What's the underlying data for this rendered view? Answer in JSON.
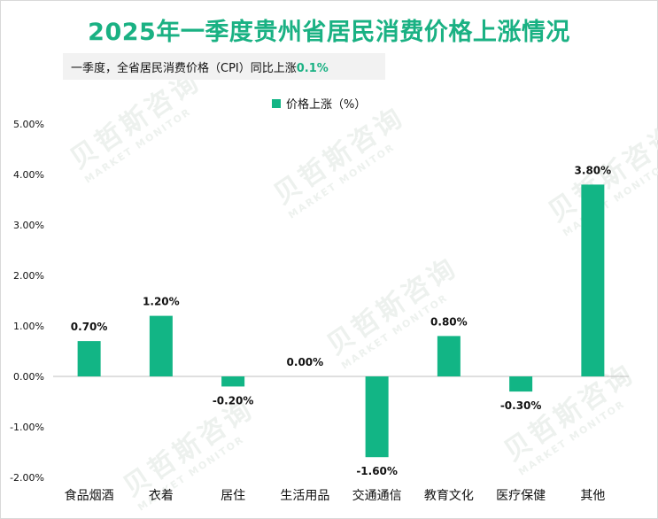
{
  "title": "2025年一季度贵州省居民消费价格上涨情况",
  "subtitle": {
    "prefix": "一季度，全省居民消费价格（CPI）同比上涨",
    "highlight": "0.1%"
  },
  "watermark": {
    "brand": "贝哲斯咨询",
    "tagline": "MARKET MONITOR"
  },
  "colors": {
    "bar": "#12b585",
    "title": "#1ab183"
  },
  "chart_data": {
    "type": "bar",
    "title": "2025年一季度贵州省居民消费价格上涨情况",
    "categories": [
      "食品烟酒",
      "衣着",
      "居住",
      "生活用品",
      "交通通信",
      "教育文化",
      "医疗保健",
      "其他"
    ],
    "series": [
      {
        "name": "价格上涨（%）",
        "values": [
          0.7,
          1.2,
          -0.2,
          0.0,
          -1.6,
          0.8,
          -0.3,
          3.8
        ]
      }
    ],
    "value_labels": [
      "0.70%",
      "1.20%",
      "-0.20%",
      "0.00%",
      "-1.60%",
      "0.80%",
      "-0.30%",
      "3.80%"
    ],
    "y_ticks": [
      "-2.00%",
      "-1.00%",
      "0.00%",
      "1.00%",
      "2.00%",
      "3.00%",
      "4.00%",
      "5.00%"
    ],
    "ylim": [
      -2,
      5
    ],
    "xlabel": "",
    "ylabel": "",
    "legend_position": "top-center",
    "grid": false
  }
}
